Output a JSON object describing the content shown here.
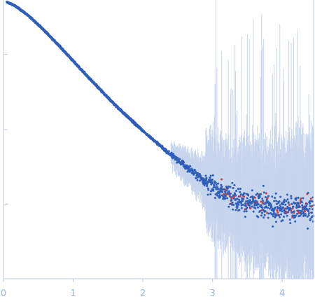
{
  "chart_data": {
    "type": "scatter",
    "title": "",
    "xlabel": "",
    "ylabel": "",
    "xlim": [
      0,
      4.45
    ],
    "ylim": [
      0,
      1
    ],
    "x_ticks": [
      {
        "value": 0,
        "label": "0"
      },
      {
        "value": 1,
        "label": "1"
      },
      {
        "value": 2,
        "label": "2"
      },
      {
        "value": 3,
        "label": "3"
      },
      {
        "value": 4,
        "label": "4"
      }
    ],
    "y_ticks": [
      {
        "value": 0.265,
        "label": ""
      },
      {
        "value": 0.535,
        "label": ""
      },
      {
        "value": 0.805,
        "label": ""
      }
    ],
    "grid": false,
    "legend": "none",
    "colors": {
      "axis": "#b9c9e6",
      "tick_text": "#9db5e0",
      "points": "#2f5fb8",
      "outliers": "#d23a3a",
      "error_bars": "#c7d5ee"
    },
    "series": [
      {
        "marker_color": "#2f5fb8",
        "error_color": "#c7d5ee",
        "points": [
          [
            0.05,
            0.992
          ],
          [
            0.1,
            0.987
          ],
          [
            0.15,
            0.981
          ],
          [
            0.2,
            0.973
          ],
          [
            0.25,
            0.964
          ],
          [
            0.3,
            0.955
          ],
          [
            0.35,
            0.945
          ],
          [
            0.4,
            0.934
          ],
          [
            0.45,
            0.923
          ],
          [
            0.5,
            0.911
          ],
          [
            0.55,
            0.899
          ],
          [
            0.6,
            0.887
          ],
          [
            0.65,
            0.874
          ],
          [
            0.7,
            0.861
          ],
          [
            0.75,
            0.848
          ],
          [
            0.8,
            0.835
          ],
          [
            0.85,
            0.822
          ],
          [
            0.9,
            0.808
          ],
          [
            0.95,
            0.795
          ],
          [
            1.0,
            0.781
          ],
          [
            1.05,
            0.768
          ],
          [
            1.1,
            0.754
          ],
          [
            1.15,
            0.741
          ],
          [
            1.2,
            0.727
          ],
          [
            1.25,
            0.714
          ],
          [
            1.3,
            0.701
          ],
          [
            1.35,
            0.688
          ],
          [
            1.4,
            0.675
          ],
          [
            1.45,
            0.662
          ],
          [
            1.5,
            0.649
          ],
          [
            1.55,
            0.637
          ],
          [
            1.6,
            0.624
          ],
          [
            1.65,
            0.612
          ],
          [
            1.7,
            0.6
          ],
          [
            1.75,
            0.588
          ],
          [
            1.8,
            0.577
          ],
          [
            1.85,
            0.565
          ],
          [
            1.9,
            0.553
          ],
          [
            1.95,
            0.542
          ],
          [
            2.0,
            0.531
          ],
          [
            2.05,
            0.52
          ],
          [
            2.1,
            0.509
          ],
          [
            2.15,
            0.498
          ],
          [
            2.2,
            0.488
          ],
          [
            2.25,
            0.477
          ],
          [
            2.3,
            0.467
          ],
          [
            2.35,
            0.456
          ],
          [
            2.4,
            0.446
          ],
          [
            2.45,
            0.436
          ],
          [
            2.5,
            0.426
          ],
          [
            2.55,
            0.416
          ],
          [
            2.6,
            0.406
          ],
          [
            2.65,
            0.396
          ],
          [
            2.7,
            0.387
          ],
          [
            2.75,
            0.377
          ],
          [
            2.8,
            0.368
          ],
          [
            2.85,
            0.359
          ],
          [
            2.9,
            0.35
          ],
          [
            2.95,
            0.342
          ],
          [
            3.0,
            0.334
          ],
          [
            3.05,
            0.326
          ],
          [
            3.1,
            0.318
          ],
          [
            3.15,
            0.312
          ],
          [
            3.2,
            0.305
          ],
          [
            3.25,
            0.299
          ],
          [
            3.3,
            0.293
          ],
          [
            3.35,
            0.288
          ],
          [
            3.4,
            0.284
          ],
          [
            3.45,
            0.279
          ],
          [
            3.5,
            0.276
          ],
          [
            3.55,
            0.272
          ],
          [
            3.6,
            0.269
          ],
          [
            3.65,
            0.266
          ],
          [
            3.7,
            0.264
          ],
          [
            3.75,
            0.262
          ],
          [
            3.8,
            0.26
          ],
          [
            3.85,
            0.258
          ],
          [
            3.9,
            0.257
          ],
          [
            3.95,
            0.256
          ],
          [
            4.0,
            0.255
          ],
          [
            4.05,
            0.254
          ],
          [
            4.1,
            0.253
          ],
          [
            4.15,
            0.252
          ],
          [
            4.2,
            0.252
          ],
          [
            4.25,
            0.251
          ],
          [
            4.3,
            0.251
          ],
          [
            4.35,
            0.25
          ],
          [
            4.4,
            0.25
          ],
          [
            4.45,
            0.25
          ]
        ]
      }
    ]
  }
}
